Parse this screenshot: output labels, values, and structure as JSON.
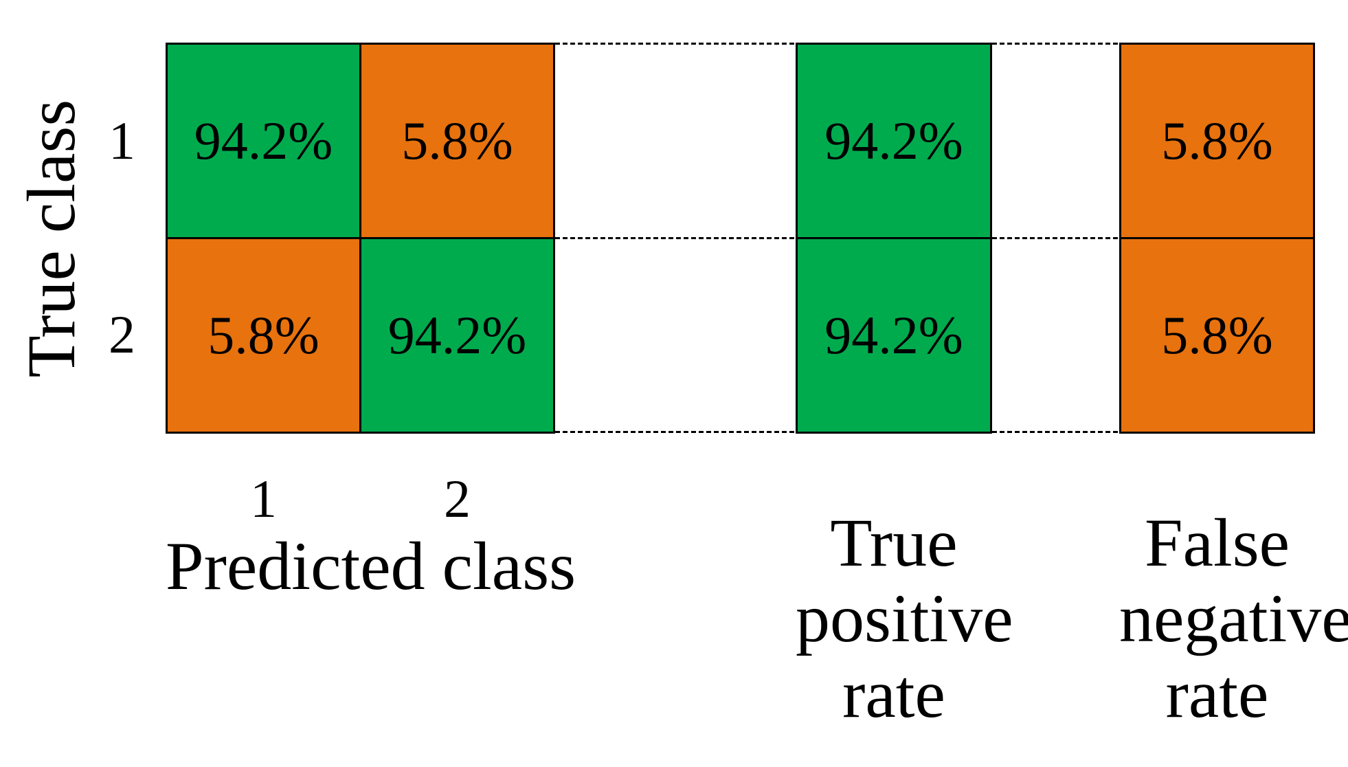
{
  "chart_data": {
    "type": "heatmap",
    "subtype": "confusion-matrix",
    "title": "",
    "xlabel": "Predicted class",
    "ylabel": "True class",
    "x_tick_labels": [
      "1",
      "2"
    ],
    "y_tick_labels": [
      "1",
      "2"
    ],
    "matrix_row_normalized_percent": [
      [
        94.2,
        5.8
      ],
      [
        5.8,
        94.2
      ]
    ],
    "true_positive_rate_percent": [
      94.2,
      94.2
    ],
    "false_negative_rate_percent": [
      5.8,
      5.8
    ],
    "column_summaries": [
      "True positive rate",
      "False negative rate"
    ],
    "legend": "none",
    "grid": "off",
    "cell_color_rule": "green = correct (diagonal / TPR), orange = incorrect (off-diagonal / FNR)"
  },
  "axes": {
    "ylabel": "True class",
    "xlabel": "Predicted class",
    "ytick1": "1",
    "ytick2": "2",
    "xtick1": "1",
    "xtick2": "2"
  },
  "cells": {
    "r1c1": "94.2%",
    "r1c2": "5.8%",
    "r2c1": "5.8%",
    "r2c2": "94.2%"
  },
  "summary": {
    "tpr": {
      "lines": [
        "True",
        "positive",
        "rate"
      ],
      "r1": "94.2%",
      "r2": "94.2%"
    },
    "fnr": {
      "lines": [
        "False",
        "negative",
        "rate"
      ],
      "r1": "5.8%",
      "r2": "5.8%"
    }
  },
  "colors": {
    "green": "#00AB4E",
    "orange": "#E8720D",
    "line": "#000000",
    "background": "#FFFFFF"
  }
}
